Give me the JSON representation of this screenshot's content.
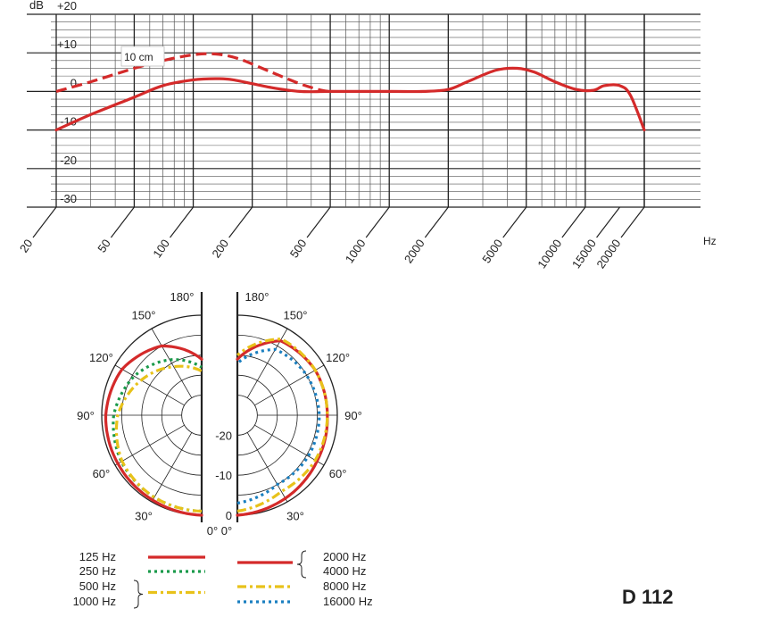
{
  "model": "D 112",
  "chart_data": [
    {
      "type": "line",
      "title": "",
      "ylabel": "dB",
      "xlabel": "Hz",
      "x_scale": "log",
      "xlim": [
        20,
        20000
      ],
      "ylim": [
        -30,
        20
      ],
      "y_ticks": [
        {
          "value": 20,
          "label": "+20"
        },
        {
          "value": 10,
          "label": "+10"
        },
        {
          "value": 0,
          "label": "0"
        },
        {
          "value": -10,
          "label": "-10"
        },
        {
          "value": -20,
          "label": "-20"
        },
        {
          "value": -30,
          "label": "-30"
        }
      ],
      "x_ticks": [
        {
          "value": 20,
          "label": "20"
        },
        {
          "value": 50,
          "label": "50"
        },
        {
          "value": 100,
          "label": "100"
        },
        {
          "value": 200,
          "label": "200"
        },
        {
          "value": 500,
          "label": "500"
        },
        {
          "value": 1000,
          "label": "1000"
        },
        {
          "value": 2000,
          "label": "2000"
        },
        {
          "value": 5000,
          "label": "5000"
        },
        {
          "value": 10000,
          "label": "10000"
        },
        {
          "value": 15000,
          "label": "15000"
        },
        {
          "value": 20000,
          "label": "20000"
        }
      ],
      "grid": true,
      "annotation": "10 cm",
      "series": [
        {
          "style": "solid",
          "color": "#d42a2a",
          "points": [
            [
              20,
              -10
            ],
            [
              30,
              -6
            ],
            [
              50,
              -1.5
            ],
            [
              70,
              1.5
            ],
            [
              100,
              3
            ],
            [
              130,
              3.3
            ],
            [
              160,
              3
            ],
            [
              250,
              1
            ],
            [
              350,
              0
            ],
            [
              500,
              0
            ],
            [
              1000,
              0
            ],
            [
              1500,
              0
            ],
            [
              2000,
              0.5
            ],
            [
              2500,
              2.5
            ],
            [
              3500,
              5.5
            ],
            [
              4500,
              6
            ],
            [
              5500,
              5
            ],
            [
              7000,
              2.5
            ],
            [
              9000,
              0.5
            ],
            [
              11000,
              0.3
            ],
            [
              12500,
              1.5
            ],
            [
              15000,
              1.5
            ],
            [
              17000,
              -1
            ],
            [
              20000,
              -10
            ]
          ]
        },
        {
          "style": "dashed",
          "color": "#d42a2a",
          "points": [
            [
              20,
              0
            ],
            [
              30,
              2.5
            ],
            [
              50,
              6
            ],
            [
              70,
              8
            ],
            [
              100,
              9.5
            ],
            [
              130,
              9.7
            ],
            [
              170,
              8.5
            ],
            [
              250,
              5
            ],
            [
              350,
              2
            ],
            [
              450,
              0.3
            ],
            [
              500,
              0
            ]
          ]
        }
      ]
    },
    {
      "type": "polar",
      "title": "",
      "angle_labels": [
        "180°",
        "150°",
        "120°",
        "90°",
        "60°",
        "30°",
        "0°"
      ],
      "level_labels": [
        "-20",
        "-10",
        "0"
      ],
      "rlim": [
        -25,
        0
      ],
      "left_half": {
        "series": [
          {
            "name": "125 Hz",
            "color": "#d42a2a",
            "style": "solid",
            "points": [
              [
                0,
                0
              ],
              [
                30,
                -0.5
              ],
              [
                60,
                -0.8
              ],
              [
                90,
                -1
              ],
              [
                120,
                -2
              ],
              [
                150,
                -5
              ],
              [
                180,
                -11
              ]
            ]
          },
          {
            "name": "250 Hz",
            "color": "#1a9a4a",
            "style": "dotted",
            "points": [
              [
                0,
                -1
              ],
              [
                30,
                -1.3
              ],
              [
                60,
                -1.8
              ],
              [
                90,
                -3
              ],
              [
                120,
                -5.5
              ],
              [
                150,
                -9
              ],
              [
                180,
                -13
              ]
            ]
          },
          {
            "name": "500 Hz / 1000 Hz",
            "color": "#e8c21a",
            "style": "dash-dot",
            "points": [
              [
                0,
                -1
              ],
              [
                30,
                -1.3
              ],
              [
                60,
                -2
              ],
              [
                90,
                -4
              ],
              [
                120,
                -7.5
              ],
              [
                150,
                -11
              ],
              [
                180,
                -14
              ]
            ]
          }
        ]
      },
      "right_half": {
        "series": [
          {
            "name": "2000 Hz / 4000 Hz",
            "color": "#d42a2a",
            "style": "solid",
            "points": [
              [
                0,
                0
              ],
              [
                30,
                -1
              ],
              [
                60,
                -2
              ],
              [
                90,
                -2.5
              ],
              [
                120,
                -2.5
              ],
              [
                150,
                -3.5
              ],
              [
                180,
                -11
              ]
            ]
          },
          {
            "name": "8000 Hz",
            "color": "#e8c21a",
            "style": "dash-dot",
            "points": [
              [
                0,
                -1
              ],
              [
                30,
                -3
              ],
              [
                60,
                -2.5
              ],
              [
                90,
                -2.5
              ],
              [
                120,
                -2.5
              ],
              [
                150,
                -3
              ],
              [
                180,
                -10
              ]
            ]
          },
          {
            "name": "16000 Hz",
            "color": "#1a7fc0",
            "style": "dotted",
            "points": [
              [
                0,
                -3
              ],
              [
                30,
                -5
              ],
              [
                60,
                -4.5
              ],
              [
                90,
                -4.5
              ],
              [
                120,
                -5
              ],
              [
                150,
                -6
              ],
              [
                180,
                -12
              ]
            ]
          }
        ]
      },
      "legend": {
        "left": [
          {
            "label": "125 Hz",
            "color": "#d42a2a",
            "style": "solid"
          },
          {
            "label": "250 Hz",
            "color": "#1a9a4a",
            "style": "dotted"
          },
          {
            "labels": [
              "500 Hz",
              "1000 Hz"
            ],
            "color": "#e8c21a",
            "style": "dash-dot"
          }
        ],
        "right": [
          {
            "labels": [
              "2000 Hz",
              "4000 Hz"
            ],
            "color": "#d42a2a",
            "style": "solid"
          },
          {
            "label": "8000 Hz",
            "color": "#e8c21a",
            "style": "dash-dot"
          },
          {
            "label": "16000 Hz",
            "color": "#1a7fc0",
            "style": "dotted"
          }
        ]
      }
    }
  ]
}
